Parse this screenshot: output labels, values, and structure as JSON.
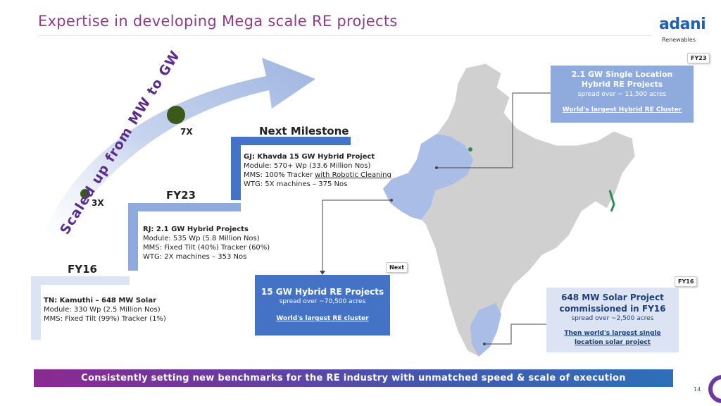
{
  "title": "Expertise in developing Mega scale RE projects",
  "logo": {
    "name": "adani",
    "sub": "Renewables"
  },
  "arrow_text": "Scaled up from MW to GW",
  "multipliers": {
    "m3x": "3X",
    "m7x": "7X"
  },
  "steps": {
    "fy16": {
      "label": "FY16",
      "heading": "TN: Kamuthi – 648 MW Solar",
      "lines": [
        "Module: 330 Wp (2.5 Million Nos)",
        "MMS: Fixed Tilt (99%) Tracker (1%)"
      ]
    },
    "fy23": {
      "label": "FY23",
      "heading": "RJ: 2.1 GW Hybrid Projects",
      "lines": [
        "Module: 535 Wp (5.8 Million Nos)",
        "MMS: Fixed Tilt (40%) Tracker (60%)",
        "WTG: 2X machines – 353 Nos"
      ]
    },
    "next": {
      "label": "Next Milestone",
      "heading": "GJ: Khavda 15 GW Hybrid Project",
      "line1": "Module: 570+ Wp (33.6 Million Nos)",
      "line2_prefix": "MMS: 100% Tracker ",
      "line2_link": "with Robotic Cleaning",
      "line3": "WTG: 5X machines – 375 Nos"
    }
  },
  "callouts": {
    "rj": {
      "tag": "FY23",
      "title": "2.1 GW Single Location Hybrid RE Projects",
      "sub": "spread over ~ 11,500 acres",
      "link": "World's largest Hybrid RE Cluster"
    },
    "gj": {
      "tag": "Next",
      "title": "15 GW Hybrid RE Projects",
      "sub": "spread over ~70,500 acres",
      "link": "World's largest RE cluster"
    },
    "tn": {
      "tag": "FY16",
      "title": "648 MW Solar Project commissioned in FY16",
      "sub": "spread over ~2,500 acres",
      "link": "Then world's largest single location solar project"
    }
  },
  "banner": "Consistently setting new benchmarks for the RE industry with unmatched speed & scale of execution",
  "page_number": "14",
  "colors": {
    "title": "#8e3c8a",
    "blue": "#4472c4",
    "light_blue": "#dce3f3",
    "step_blue": "#8faadc",
    "dot": "#3a5a1a"
  }
}
